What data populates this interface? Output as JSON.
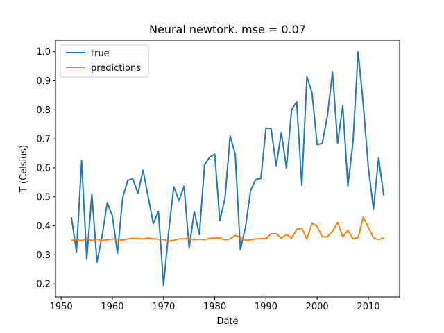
{
  "chart_data": {
    "type": "line",
    "title": "Neural newtork. mse = 0.07",
    "xlabel": "Date",
    "ylabel": "T (Celsius)",
    "xlim": [
      1948.9,
      2016.1
    ],
    "ylim": [
      0.155,
      1.04
    ],
    "xticks": [
      1950,
      1960,
      1970,
      1980,
      1990,
      2000,
      2010
    ],
    "yticks": [
      0.2,
      0.3,
      0.4,
      0.5,
      0.6,
      0.7,
      0.8,
      0.9,
      1.0
    ],
    "xtick_labels": [
      "1950",
      "1960",
      "1970",
      "1980",
      "1990",
      "2000",
      "2010"
    ],
    "ytick_labels": [
      "0.2",
      "0.3",
      "0.4",
      "0.5",
      "0.6",
      "0.7",
      "0.8",
      "0.9",
      "1.0"
    ],
    "grid": false,
    "legend_position": "top-left",
    "x": [
      1952,
      1953,
      1954,
      1955,
      1956,
      1957,
      1958,
      1959,
      1960,
      1961,
      1962,
      1963,
      1964,
      1965,
      1966,
      1967,
      1968,
      1969,
      1970,
      1971,
      1972,
      1973,
      1974,
      1975,
      1976,
      1977,
      1978,
      1979,
      1980,
      1981,
      1982,
      1983,
      1984,
      1985,
      1986,
      1987,
      1988,
      1989,
      1990,
      1991,
      1992,
      1993,
      1994,
      1995,
      1996,
      1997,
      1998,
      1999,
      2000,
      2001,
      2002,
      2003,
      2004,
      2005,
      2006,
      2007,
      2008,
      2009,
      2010,
      2011,
      2012,
      2013
    ],
    "series": [
      {
        "name": "true",
        "color": "#1f77b4",
        "values": [
          0.43,
          0.31,
          0.625,
          0.285,
          0.51,
          0.275,
          0.365,
          0.48,
          0.435,
          0.305,
          0.495,
          0.557,
          0.562,
          0.512,
          0.592,
          0.5,
          0.408,
          0.45,
          0.195,
          0.38,
          0.535,
          0.487,
          0.537,
          0.324,
          0.45,
          0.37,
          0.61,
          0.637,
          0.647,
          0.418,
          0.495,
          0.71,
          0.647,
          0.318,
          0.395,
          0.522,
          0.56,
          0.563,
          0.737,
          0.735,
          0.608,
          0.722,
          0.6,
          0.8,
          0.828,
          0.54,
          0.915,
          0.858,
          0.68,
          0.685,
          0.78,
          0.93,
          0.685,
          0.815,
          0.538,
          0.69,
          1.0,
          0.82,
          0.6,
          0.458,
          0.635,
          0.505
        ]
      },
      {
        "name": "predictions",
        "color": "#ff7f0e",
        "values": [
          0.35,
          0.352,
          0.349,
          0.356,
          0.349,
          0.354,
          0.349,
          0.352,
          0.355,
          0.352,
          0.351,
          0.355,
          0.357,
          0.356,
          0.355,
          0.358,
          0.355,
          0.354,
          0.353,
          0.347,
          0.35,
          0.355,
          0.355,
          0.357,
          0.352,
          0.354,
          0.352,
          0.357,
          0.358,
          0.358,
          0.352,
          0.355,
          0.367,
          0.36,
          0.35,
          0.352,
          0.355,
          0.356,
          0.356,
          0.373,
          0.373,
          0.358,
          0.37,
          0.358,
          0.388,
          0.392,
          0.355,
          0.41,
          0.398,
          0.362,
          0.362,
          0.382,
          0.412,
          0.362,
          0.385,
          0.355,
          0.36,
          0.43,
          0.395,
          0.358,
          0.353,
          0.358
        ]
      }
    ]
  }
}
